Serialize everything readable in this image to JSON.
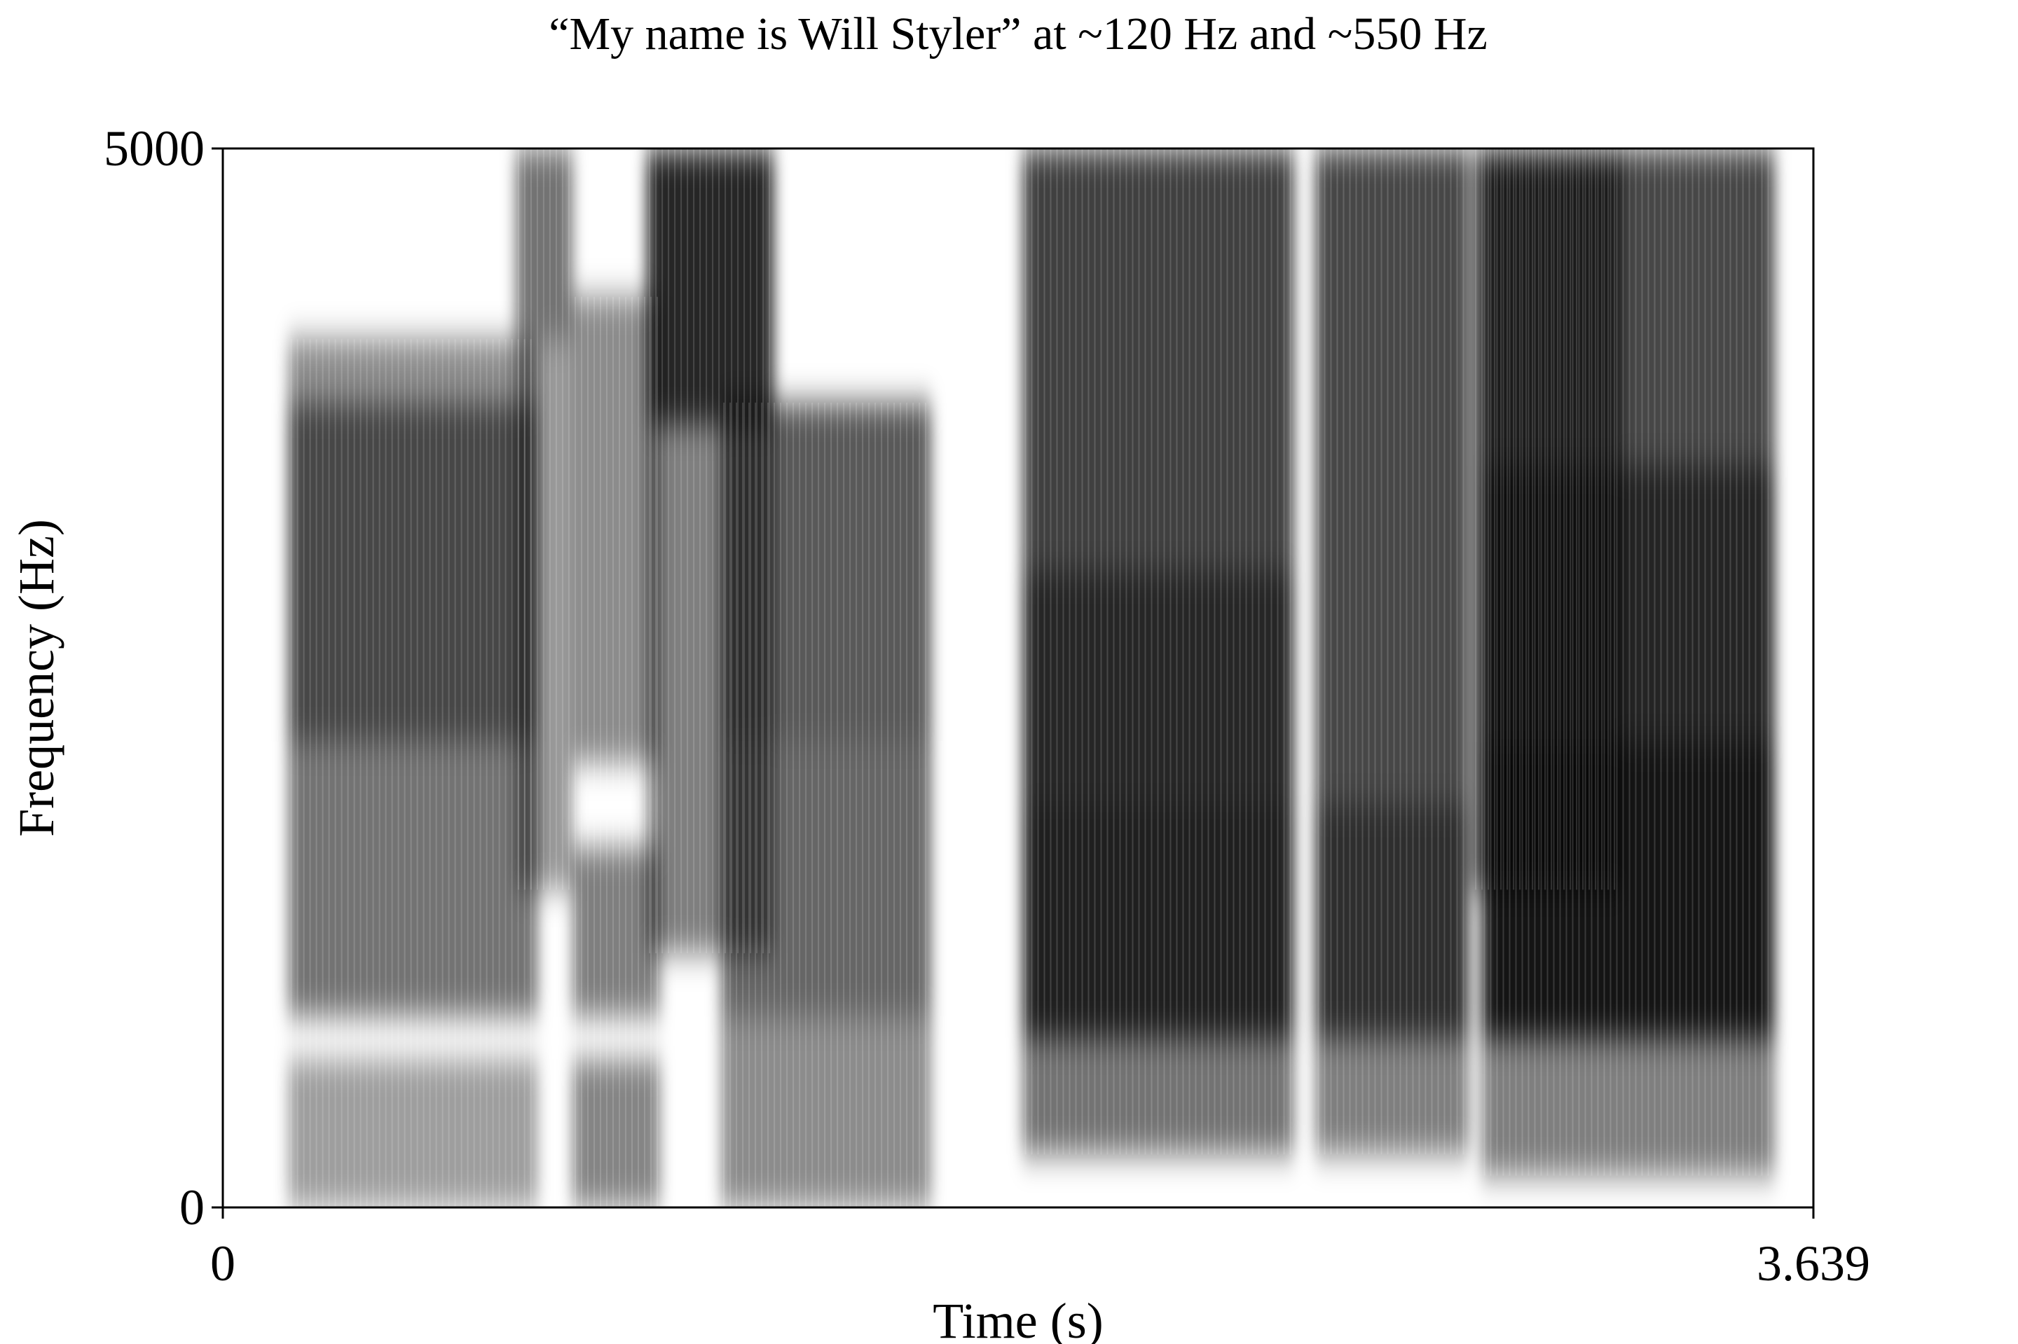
{
  "chart_data": {
    "type": "heatmap",
    "subtype": "spectrogram",
    "colormap": "grayscale (white = low energy, black = high energy)",
    "title": "“My name is Will Styler” at ~120 Hz and ~550 Hz",
    "xlabel": "Time (s)",
    "ylabel": "Frequency (Hz)",
    "xlim": [
      0,
      3.639
    ],
    "ylim": [
      0,
      5000
    ],
    "x_tick_labels": [
      "0",
      "3.639"
    ],
    "y_tick_labels": [
      "0",
      "5000"
    ],
    "grid": false,
    "legend": "none",
    "segments": [
      {
        "t": [
          0.15,
          0.72
        ],
        "bands": [
          {
            "f": [
              0,
              700
            ],
            "level": 0.38
          },
          {
            "f": [
              900,
              2200
            ],
            "level": 0.55
          },
          {
            "f": [
              2200,
              3800
            ],
            "level": 0.72
          },
          {
            "f": [
              3800,
              4100
            ],
            "level": 0.45
          }
        ]
      },
      {
        "t": [
          0.67,
          0.8
        ],
        "bands": [
          {
            "f": [
              1500,
              4100
            ],
            "level": 0.4
          },
          {
            "f": [
              4100,
              5000
            ],
            "level": 0.55
          }
        ]
      },
      {
        "t": [
          0.8,
          1.0
        ],
        "bands": [
          {
            "f": [
              0,
              700
            ],
            "level": 0.48
          },
          {
            "f": [
              900,
              1700
            ],
            "level": 0.5
          },
          {
            "f": [
              2100,
              4300
            ],
            "level": 0.45
          }
        ]
      },
      {
        "t": [
          0.97,
          1.26
        ],
        "bands": [
          {
            "f": [
              1200,
              3700
            ],
            "level": 0.5
          },
          {
            "f": [
              3700,
              5000
            ],
            "level": 0.85
          }
        ]
      },
      {
        "t": [
          1.14,
          1.62
        ],
        "bands": [
          {
            "f": [
              0,
              900
            ],
            "level": 0.45
          },
          {
            "f": [
              900,
              2200
            ],
            "level": 0.6
          },
          {
            "f": [
              2200,
              3800
            ],
            "level": 0.65
          }
        ]
      },
      {
        "t": [
          1.83,
          2.45
        ],
        "bands": [
          {
            "f": [
              250,
              800
            ],
            "level": 0.55
          },
          {
            "f": [
              800,
              1900
            ],
            "level": 0.88
          },
          {
            "f": [
              1900,
              3000
            ],
            "level": 0.85
          },
          {
            "f": [
              3000,
              5000
            ],
            "level": 0.75
          }
        ]
      },
      {
        "t": [
          2.5,
          2.85
        ],
        "bands": [
          {
            "f": [
              250,
              800
            ],
            "level": 0.5
          },
          {
            "f": [
              800,
              1900
            ],
            "level": 0.82
          },
          {
            "f": [
              1900,
              5000
            ],
            "level": 0.72
          }
        ]
      },
      {
        "t": [
          2.86,
          3.2
        ],
        "bands": [
          {
            "f": [
              1500,
              5000
            ],
            "level": 0.62
          }
        ]
      },
      {
        "t": [
          2.88,
          3.55
        ],
        "bands": [
          {
            "f": [
              150,
              800
            ],
            "level": 0.5
          },
          {
            "f": [
              800,
              2200
            ],
            "level": 0.92
          },
          {
            "f": [
              2200,
              3500
            ],
            "level": 0.86
          },
          {
            "f": [
              3500,
              5000
            ],
            "level": 0.72
          }
        ]
      }
    ]
  }
}
